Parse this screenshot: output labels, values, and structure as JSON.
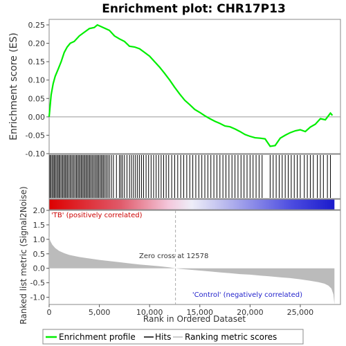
{
  "chart_data": {
    "type": "line",
    "title": "Enrichment plot: CHR17P13",
    "panels": {
      "es": {
        "ylabel": "Enrichment score (ES)",
        "ylim": [
          -0.1,
          0.265
        ],
        "yticks": [
          -0.1,
          -0.05,
          0.0,
          0.05,
          0.1,
          0.15,
          0.2,
          0.25
        ],
        "ytick_labels": [
          "-0.10",
          "-0.05",
          "0.00",
          "0.05",
          "0.10",
          "0.15",
          "0.20",
          "0.25"
        ]
      },
      "metric": {
        "ylabel": "Ranked list metric (Signal2Noise)",
        "ylim": [
          -1.25,
          2.0
        ],
        "yticks": [
          -1.0,
          -0.5,
          0.0,
          0.5,
          1.0,
          1.5,
          2.0
        ],
        "ytick_labels": [
          "-1.0",
          "-0.5",
          "0.0",
          "0.5",
          "1.0",
          "1.5",
          "2.0"
        ],
        "zero_cross_label": "Zero cross at 12578",
        "zero_cross": 12578,
        "positive_label": "'TB' (positively correlated)",
        "negative_label": "'Control' (negatively correlated)"
      }
    },
    "xlabel": "Rank in Ordered Dataset",
    "xlim": [
      0,
      29000
    ],
    "xticks": [
      0,
      5000,
      10000,
      15000,
      20000,
      25000
    ],
    "xtick_labels": [
      "0",
      "5,000",
      "10,000",
      "15,000",
      "20,000",
      "25,000"
    ],
    "n_genes": 28400,
    "series": [
      {
        "name": "Enrichment profile",
        "color": "#00ee00",
        "x": [
          0,
          200,
          400,
          600,
          900,
          1200,
          1500,
          1800,
          2100,
          2500,
          3000,
          3500,
          4000,
          4500,
          4800,
          5200,
          5600,
          6000,
          6500,
          7000,
          7500,
          8000,
          8500,
          9000,
          9500,
          10000,
          10500,
          11000,
          11500,
          12000,
          12500,
          13000,
          13500,
          14000,
          14500,
          15000,
          15500,
          16000,
          16500,
          17000,
          17500,
          18000,
          18500,
          19000,
          19500,
          20000,
          20500,
          21000,
          21500,
          22000,
          22500,
          23000,
          23500,
          24000,
          24500,
          25000,
          25500,
          26000,
          26500,
          27000,
          27500,
          28000,
          28200
        ],
        "y": [
          0.0,
          0.06,
          0.09,
          0.11,
          0.13,
          0.15,
          0.175,
          0.19,
          0.2,
          0.205,
          0.22,
          0.23,
          0.24,
          0.243,
          0.25,
          0.245,
          0.24,
          0.235,
          0.22,
          0.212,
          0.205,
          0.192,
          0.19,
          0.185,
          0.175,
          0.165,
          0.15,
          0.135,
          0.118,
          0.1,
          0.08,
          0.062,
          0.045,
          0.033,
          0.02,
          0.012,
          0.003,
          -0.005,
          -0.012,
          -0.018,
          -0.025,
          -0.027,
          -0.033,
          -0.04,
          -0.048,
          -0.053,
          -0.057,
          -0.058,
          -0.06,
          -0.08,
          -0.078,
          -0.058,
          -0.05,
          -0.043,
          -0.038,
          -0.035,
          -0.04,
          -0.028,
          -0.02,
          -0.005,
          -0.008,
          0.01,
          0.004
        ]
      },
      {
        "name": "Hits",
        "color": "#000000",
        "hit_positions": [
          70,
          180,
          300,
          420,
          520,
          640,
          760,
          880,
          990,
          1100,
          1230,
          1350,
          1470,
          1590,
          1700,
          1820,
          1950,
          2080,
          2200,
          2330,
          2460,
          2590,
          2720,
          2840,
          2960,
          3080,
          3200,
          3320,
          3440,
          3560,
          3680,
          3800,
          3920,
          4040,
          4160,
          4290,
          4420,
          4550,
          4680,
          4800,
          4920,
          5050,
          5180,
          5300,
          5420,
          5560,
          5700,
          5850,
          6000,
          6200,
          6400,
          6700,
          7000,
          7150,
          7300,
          7500,
          7750,
          8000,
          8200,
          8400,
          8600,
          8800,
          9000,
          9200,
          9400,
          9650,
          9900,
          10150,
          10400,
          10650,
          10900,
          11150,
          11400,
          11650,
          11900,
          12200,
          12500,
          12800,
          13100,
          13400,
          13700,
          14000,
          14300,
          14600,
          14900,
          15200,
          15500,
          15800,
          16100,
          16400,
          16700,
          17000,
          17300,
          17600,
          17900,
          18200,
          18500,
          18800,
          19100,
          19400,
          19700,
          20000,
          20300,
          20600,
          20900,
          21200,
          22000,
          22300,
          22600,
          22900,
          23200,
          23500,
          23800,
          24100,
          24400,
          24700,
          25000,
          25400,
          25700,
          26000,
          26300,
          26700,
          27000,
          27300,
          27700,
          28000
        ]
      },
      {
        "name": "Ranking metric scores",
        "color": "#bbbbbb",
        "x": [
          0,
          100,
          300,
          600,
          1000,
          1500,
          2000,
          3000,
          4000,
          5000,
          6000,
          7000,
          8000,
          9000,
          10000,
          11000,
          12000,
          12578,
          13000,
          14000,
          15000,
          16000,
          17000,
          18000,
          19000,
          20000,
          21000,
          22000,
          23000,
          24000,
          25000,
          26000,
          26800,
          27400,
          27800,
          28100,
          28300,
          28400
        ],
        "y": [
          1.1,
          0.95,
          0.82,
          0.7,
          0.6,
          0.52,
          0.46,
          0.39,
          0.34,
          0.29,
          0.25,
          0.21,
          0.17,
          0.13,
          0.1,
          0.07,
          0.03,
          0.0,
          -0.02,
          -0.05,
          -0.08,
          -0.11,
          -0.14,
          -0.17,
          -0.2,
          -0.22,
          -0.25,
          -0.28,
          -0.31,
          -0.34,
          -0.38,
          -0.43,
          -0.48,
          -0.53,
          -0.6,
          -0.7,
          -0.9,
          -1.25
        ]
      }
    ],
    "legend_position": "bottom"
  }
}
